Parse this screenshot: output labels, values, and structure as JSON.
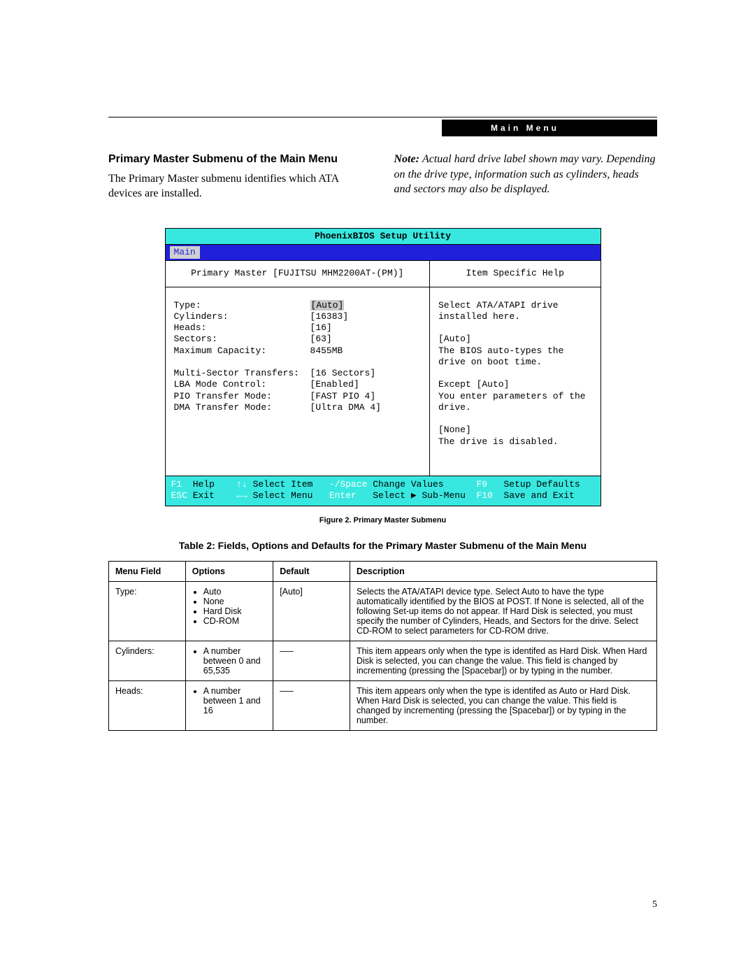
{
  "header": {
    "bar_label": "Main Menu"
  },
  "intro": {
    "heading": "Primary Master Submenu of the Main Menu",
    "body": "The Primary Master submenu identifies which ATA devices are installed.",
    "note_label": "Note:",
    "note_body": "Actual hard drive label shown may vary.  Depending on the drive type, information such as cylinders, heads and sectors may also be displayed."
  },
  "bios": {
    "title": "PhoenixBIOS Setup Utility",
    "tab": "Main",
    "left_header": "Primary Master [FUJITSU MHM2200AT-(PM)]",
    "right_header": "Item Specific Help",
    "fields": [
      {
        "label": "Type:",
        "value": "[Auto]",
        "highlight": true
      },
      {
        "label": "Cylinders:",
        "value": "[16383]"
      },
      {
        "label": "Heads:",
        "value": "[16]"
      },
      {
        "label": "Sectors:",
        "value": "[63]"
      },
      {
        "label": "Maximum Capacity:",
        "value": "8455MB"
      },
      {
        "label": "",
        "value": ""
      },
      {
        "label": "Multi-Sector Transfers:",
        "value": "[16 Sectors]"
      },
      {
        "label": "LBA Mode Control:",
        "value": "[Enabled]"
      },
      {
        "label": "PIO Transfer Mode:",
        "value": "[FAST PIO 4]"
      },
      {
        "label": "DMA Transfer Mode:",
        "value": "[Ultra DMA 4]"
      }
    ],
    "help_text": "Select ATA/ATAPI drive installed here.\n\n[Auto]\nThe BIOS auto-types the drive on boot time.\n\nExcept [Auto]\nYou enter parameters of the drive.\n\n[None]\nThe drive is disabled.",
    "footer": {
      "r1": {
        "k1": "F1",
        "l1": "Help",
        "k2": "↑↓",
        "l2": "Select Item",
        "k3": "-/Space",
        "l3": "Change Values",
        "k4": "F9",
        "l4": "Setup Defaults"
      },
      "r2": {
        "k1": "ESC",
        "l1": "Exit",
        "k2": "←→",
        "l2": "Select Menu",
        "k3": "Enter",
        "l3": "Select ▶ Sub-Menu",
        "k4": "F10",
        "l4": "Save and Exit"
      }
    }
  },
  "figure_caption": "Figure 2.  Primary Master Submenu",
  "table": {
    "title": "Table 2: Fields, Options and Defaults for the Primary Master Submenu of the Main Menu",
    "headers": {
      "menu": "Menu Field",
      "options": "Options",
      "default": "Default",
      "desc": "Description"
    },
    "rows": [
      {
        "menu": "Type:",
        "options": [
          "Auto",
          "None",
          "Hard Disk",
          "CD-ROM"
        ],
        "default": "[Auto]",
        "desc": "Selects the ATA/ATAPI device type. Select Auto to have the type automatically identified by the BIOS at POST. If None is selected, all of the following Set-up items do not appear. If Hard Disk is selected, you must specify the number of Cylinders, Heads, and Sectors for the drive. Select CD-ROM to select parameters for CD-ROM drive."
      },
      {
        "menu": "Cylinders:",
        "options": [
          "A number between 0 and 65,535"
        ],
        "default": "—–",
        "desc": "This item appears only when the type is identifed as Hard Disk. When Hard Disk is selected, you can change the value. This field is changed by incrementing (pressing the [Spacebar]) or by typing in the number."
      },
      {
        "menu": "Heads:",
        "options": [
          "A number between 1 and 16"
        ],
        "default": "—–",
        "desc": "This item appears only when the type is identifed as Auto or Hard Disk. When Hard Disk is selected, you can change the value. This field is changed by incrementing (pressing the [Spacebar]) or by typing in the number."
      }
    ]
  },
  "page_number": "5"
}
